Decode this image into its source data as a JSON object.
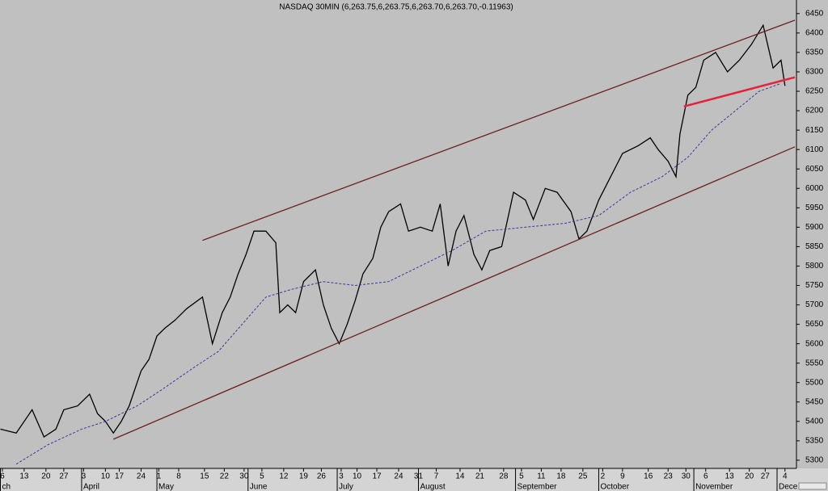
{
  "chart_data": {
    "type": "line",
    "title": "NASDAQ 30MIN (6,263.75,6,263.75,6,263.70,6,263.70,-0.11963)",
    "xlim": [
      -0.12,
      40.08
    ],
    "ylim": [
      5279,
      6485
    ],
    "yticks": [
      5300,
      5350,
      5400,
      5450,
      5500,
      5550,
      5600,
      5650,
      5700,
      5750,
      5800,
      5850,
      5900,
      5950,
      6000,
      6050,
      6100,
      6150,
      6200,
      6250,
      6300,
      6350,
      6400,
      6450
    ],
    "xticks": [
      {
        "value": 0,
        "label": "6"
      },
      {
        "value": 1.1,
        "label": "13"
      },
      {
        "value": 2.2,
        "label": "20"
      },
      {
        "value": 3.1,
        "label": "27"
      },
      {
        "value": 4.1,
        "label": "3"
      },
      {
        "value": 5.2,
        "label": "10"
      },
      {
        "value": 5.9,
        "label": "17"
      },
      {
        "value": 7.0,
        "label": "24"
      },
      {
        "value": 7.9,
        "label": "1"
      },
      {
        "value": 8.9,
        "label": "8"
      },
      {
        "value": 10.2,
        "label": "15"
      },
      {
        "value": 11.2,
        "label": "22"
      },
      {
        "value": 12.2,
        "label": "30"
      },
      {
        "value": 13.1,
        "label": "5"
      },
      {
        "value": 14.2,
        "label": "12"
      },
      {
        "value": 15.2,
        "label": "19"
      },
      {
        "value": 16.1,
        "label": "26"
      },
      {
        "value": 17.1,
        "label": "3"
      },
      {
        "value": 17.9,
        "label": "10"
      },
      {
        "value": 18.9,
        "label": "17"
      },
      {
        "value": 20.0,
        "label": "24"
      },
      {
        "value": 21.0,
        "label": "31"
      },
      {
        "value": 21.9,
        "label": "7"
      },
      {
        "value": 23.1,
        "label": "14"
      },
      {
        "value": 24.1,
        "label": "21"
      },
      {
        "value": 25.3,
        "label": "28"
      },
      {
        "value": 26.2,
        "label": "5"
      },
      {
        "value": 27.2,
        "label": "11"
      },
      {
        "value": 28.2,
        "label": "18"
      },
      {
        "value": 29.3,
        "label": "25"
      },
      {
        "value": 30.3,
        "label": "2"
      },
      {
        "value": 31.3,
        "label": "9"
      },
      {
        "value": 32.6,
        "label": "16"
      },
      {
        "value": 33.6,
        "label": "23"
      },
      {
        "value": 34.5,
        "label": "30"
      },
      {
        "value": 35.5,
        "label": "6"
      },
      {
        "value": 36.7,
        "label": "13"
      },
      {
        "value": 37.7,
        "label": "20"
      },
      {
        "value": 38.5,
        "label": "27"
      },
      {
        "value": 39.5,
        "label": "4"
      }
    ],
    "month_labels": [
      {
        "value": -0.1,
        "label": "ch"
      },
      {
        "value": 4.0,
        "label": "April"
      },
      {
        "value": 7.8,
        "label": "May"
      },
      {
        "value": 12.4,
        "label": "June"
      },
      {
        "value": 16.9,
        "label": "July"
      },
      {
        "value": 21.0,
        "label": "August"
      },
      {
        "value": 25.9,
        "label": "September"
      },
      {
        "value": 30.1,
        "label": "October"
      },
      {
        "value": 34.9,
        "label": "November"
      },
      {
        "value": 39.1,
        "label": "Dece"
      }
    ],
    "series": [
      {
        "color": "#000000",
        "style": "solid",
        "x": [
          -0.1,
          0.7,
          1.5,
          2.1,
          2.7,
          3.1,
          3.8,
          4.4,
          4.8,
          5.2,
          5.6,
          6.0,
          6.4,
          6.8,
          7.0,
          7.4,
          7.8,
          8.2,
          8.7,
          9.3,
          10.1,
          10.6,
          11.1,
          11.5,
          11.9,
          12.3,
          12.7,
          13.3,
          13.8,
          14.0,
          14.4,
          14.8,
          15.2,
          15.8,
          16.2,
          16.6,
          17.0,
          17.4,
          17.8,
          18.2,
          18.7,
          19.1,
          19.5,
          20.1,
          20.5,
          21.1,
          21.7,
          22.1,
          22.5,
          22.9,
          23.3,
          23.8,
          24.2,
          24.6,
          25.2,
          25.8,
          26.4,
          26.8,
          27.4,
          28.0,
          28.7,
          29.1,
          29.5,
          30.1,
          30.7,
          31.3,
          32.1,
          32.7,
          33.1,
          33.6,
          34.0,
          34.2,
          34.6,
          35.0,
          35.4,
          36.0,
          36.6,
          37.2,
          37.8,
          38.4,
          38.9,
          39.3,
          39.5
        ],
        "values": [
          5380,
          5370,
          5430,
          5360,
          5380,
          5430,
          5440,
          5470,
          5420,
          5400,
          5370,
          5400,
          5440,
          5500,
          5530,
          5560,
          5620,
          5640,
          5660,
          5690,
          5720,
          5600,
          5680,
          5720,
          5780,
          5830,
          5890,
          5890,
          5860,
          5680,
          5700,
          5680,
          5760,
          5790,
          5700,
          5640,
          5600,
          5650,
          5710,
          5780,
          5820,
          5900,
          5940,
          5960,
          5890,
          5900,
          5890,
          5960,
          5800,
          5890,
          5930,
          5830,
          5790,
          5840,
          5850,
          5990,
          5970,
          5920,
          6000,
          5990,
          5940,
          5870,
          5890,
          5970,
          6030,
          6090,
          6110,
          6130,
          6100,
          6070,
          6030,
          6140,
          6240,
          6260,
          6330,
          6350,
          6300,
          6330,
          6370,
          6420,
          6310,
          6330,
          6264
        ]
      },
      {
        "color": "#3a3a9a",
        "style": "dashed",
        "x": [
          0.7,
          2.3,
          4.0,
          5.2,
          6.8,
          8.0,
          9.7,
          10.9,
          12.1,
          13.3,
          14.6,
          16.2,
          17.8,
          19.5,
          20.7,
          22.7,
          24.4,
          26.4,
          28.4,
          30.1,
          31.7,
          33.3,
          34.6,
          35.8,
          37.0,
          38.2,
          39.3
        ],
        "values": [
          5290,
          5340,
          5380,
          5400,
          5440,
          5480,
          5540,
          5580,
          5650,
          5720,
          5740,
          5760,
          5750,
          5760,
          5790,
          5840,
          5890,
          5900,
          5910,
          5930,
          5990,
          6030,
          6080,
          6150,
          6200,
          6250,
          6270
        ]
      },
      {
        "color": "#6b1f1f",
        "style": "solid",
        "x": [
          10.1,
          40.0
        ],
        "values": [
          5866,
          6433
        ]
      },
      {
        "color": "#6b1f1f",
        "style": "solid",
        "x": [
          5.6,
          40.0
        ],
        "values": [
          5354,
          6107
        ]
      },
      {
        "color": "#e8203a",
        "style": "thick",
        "x": [
          34.4,
          40.0
        ],
        "values": [
          6211,
          6286
        ]
      }
    ]
  }
}
